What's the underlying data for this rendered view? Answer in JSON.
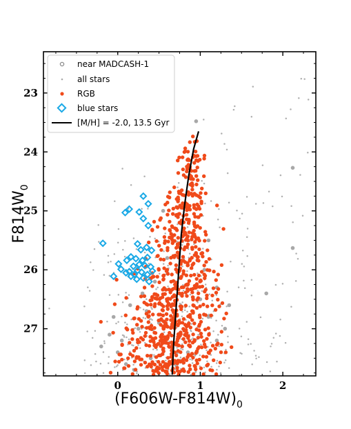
{
  "chart_data": {
    "type": "scatter",
    "xlabel": "(F606W-F814W)",
    "xlabel_sub": "0",
    "ylabel": "F814W",
    "ylabel_sub": "0",
    "xlim": [
      -0.9,
      2.4
    ],
    "ylim": [
      27.8,
      22.3
    ],
    "y_inverted": true,
    "x_ticks": [
      0,
      1,
      2
    ],
    "x_tick_labels": [
      "0",
      "1",
      "2"
    ],
    "y_ticks": [
      23,
      24,
      25,
      26,
      27
    ],
    "y_tick_labels": [
      "23",
      "24",
      "25",
      "26",
      "27"
    ],
    "grid": false,
    "legend_position": "top-left",
    "colors": {
      "near": "#999999",
      "all": "#b0b0b0",
      "rgb": "#f04a1a",
      "blue": "#1aa9e6",
      "isochrone": "#000000"
    },
    "series": [
      {
        "name": "near MADCASH-1",
        "marker": "circle-open-gray",
        "points": [
          [
            0.95,
            23.48
          ],
          [
            2.12,
            24.27
          ],
          [
            2.12,
            25.63
          ],
          [
            1.8,
            26.4
          ],
          [
            0.55,
            25.0
          ],
          [
            0.6,
            25.8
          ],
          [
            0.45,
            26.2
          ],
          [
            0.3,
            26.4
          ],
          [
            0.15,
            26.6
          ],
          [
            0.05,
            27.2
          ],
          [
            0.0,
            27.4
          ],
          [
            -0.05,
            26.8
          ],
          [
            0.1,
            27.6
          ],
          [
            0.25,
            27.0
          ],
          [
            0.35,
            26.7
          ],
          [
            0.4,
            27.5
          ],
          [
            0.2,
            27.7
          ],
          [
            -0.2,
            27.3
          ],
          [
            -0.1,
            27.1
          ],
          [
            0.5,
            26.9
          ],
          [
            1.0,
            26.5
          ],
          [
            1.1,
            26.8
          ],
          [
            1.2,
            27.2
          ],
          [
            1.3,
            27.0
          ],
          [
            1.05,
            26.0
          ],
          [
            1.1,
            25.5
          ],
          [
            1.2,
            26.3
          ],
          [
            1.35,
            26.6
          ],
          [
            0.85,
            27.4
          ],
          [
            0.7,
            27.6
          ]
        ]
      },
      {
        "name": "all stars",
        "marker": "dot-gray",
        "points": []
      },
      {
        "name": "RGB",
        "marker": "circle-orange",
        "points": []
      },
      {
        "name": "blue stars",
        "marker": "diamond-open-cyan",
        "points": [
          [
            0.31,
            24.75
          ],
          [
            0.14,
            24.97
          ],
          [
            0.09,
            25.03
          ],
          [
            0.26,
            25.02
          ],
          [
            0.37,
            24.88
          ],
          [
            0.31,
            25.13
          ],
          [
            0.37,
            25.25
          ],
          [
            -0.18,
            25.55
          ],
          [
            0.24,
            25.56
          ],
          [
            0.35,
            25.62
          ],
          [
            0.41,
            25.67
          ],
          [
            0.28,
            25.66
          ],
          [
            0.16,
            25.78
          ],
          [
            0.11,
            25.84
          ],
          [
            0.22,
            25.81
          ],
          [
            0.3,
            25.84
          ],
          [
            0.36,
            25.79
          ],
          [
            0.01,
            25.9
          ],
          [
            0.19,
            25.94
          ],
          [
            0.26,
            25.91
          ],
          [
            0.33,
            25.93
          ],
          [
            0.4,
            25.95
          ],
          [
            0.04,
            25.99
          ],
          [
            0.14,
            26.03
          ],
          [
            0.24,
            26.01
          ],
          [
            0.29,
            26.04
          ],
          [
            0.36,
            26.08
          ],
          [
            0.42,
            26.02
          ],
          [
            0.1,
            26.05
          ],
          [
            -0.05,
            26.11
          ],
          [
            0.16,
            26.11
          ],
          [
            0.23,
            26.16
          ],
          [
            0.31,
            26.14
          ],
          [
            0.38,
            26.2
          ],
          [
            0.2,
            26.08
          ]
        ]
      },
      {
        "name": "[M/H] = -2.0, 13.5 Gyr",
        "marker": "line-black",
        "points": [
          [
            0.66,
            27.78
          ],
          [
            0.68,
            27.2
          ],
          [
            0.71,
            26.6
          ],
          [
            0.74,
            26.0
          ],
          [
            0.77,
            25.4
          ],
          [
            0.81,
            24.9
          ],
          [
            0.86,
            24.4
          ],
          [
            0.92,
            23.95
          ],
          [
            0.98,
            23.65
          ]
        ]
      }
    ]
  }
}
